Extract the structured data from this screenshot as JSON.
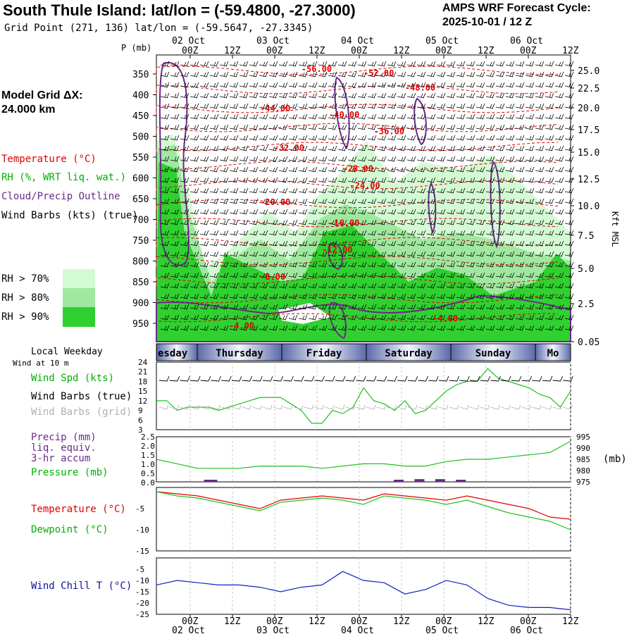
{
  "header": {
    "title": "South Thule Island:  lat/lon = (-59.4800, -27.3000)",
    "subtitle": "Grid Point (271, 136) lat/lon = (-59.5647, -27.3345)",
    "cycle_line1": "AMPS WRF Forecast Cycle:",
    "cycle_line2": "2025-10-01 / 12  Z"
  },
  "model_grid": {
    "line1": "Model Grid ΔX:",
    "line2": " 24.000 km"
  },
  "legend": {
    "temperature": "Temperature (°C)",
    "rh": "RH (%, WRT liq. wat.)",
    "cloud": "Cloud/Precip Outline",
    "wind": "Wind Barbs (kts) (true)",
    "rh70": "RH > 70%",
    "rh80": "RH > 80%",
    "rh90": "RH > 90%"
  },
  "time_axis": {
    "hours": [
      "00Z",
      "12Z",
      "00Z",
      "12Z",
      "00Z",
      "12Z",
      "00Z",
      "12Z",
      "00Z",
      "12Z"
    ],
    "dates": [
      "02 Oct",
      "03 Oct",
      "04 Oct",
      "05 Oct",
      "06 Oct"
    ]
  },
  "weekday_bar": {
    "label": "Local Weekday",
    "days": [
      "esday",
      "Thursday",
      "Friday",
      "Saturday",
      "Sunday",
      "Mo"
    ]
  },
  "colors": {
    "rh70": "#d4fad4",
    "rh80": "#a0e8a0",
    "rh90": "#30d030",
    "temp": "#e00000",
    "cloud": "#6a2a8a",
    "green_line": "#20c020",
    "red_line": "#e00000",
    "blue_line": "#1020c0",
    "day_bar": "#5a6aa8"
  },
  "chart_data": [
    {
      "type": "heatmap",
      "name": "time-height cross section",
      "y_left_label": "P (mb)",
      "y_left_ticks": [
        350,
        400,
        450,
        500,
        550,
        600,
        650,
        700,
        750,
        800,
        850,
        900,
        950
      ],
      "y_right_label": "Kft MSL",
      "y_right_ticks": [
        "25.0",
        "22.5",
        "20.0",
        "17.5",
        "15.0",
        "12.5",
        "10.0",
        "7.5",
        "5.0",
        "2.5",
        "0.05"
      ],
      "temperature_labels": [
        {
          "text": "-56.00",
          "t": 42,
          "p": 345
        },
        {
          "text": "-52.00",
          "t": 60,
          "p": 355
        },
        {
          "text": "-48.00",
          "t": 72,
          "p": 390
        },
        {
          "text": "-44.00",
          "t": 30,
          "p": 440
        },
        {
          "text": "-40.00",
          "t": 50,
          "p": 455
        },
        {
          "text": "-36.00",
          "t": 63,
          "p": 495
        },
        {
          "text": "-32.00",
          "t": 34,
          "p": 535
        },
        {
          "text": "-28.00",
          "t": 54,
          "p": 585
        },
        {
          "text": "-24.00",
          "t": 56,
          "p": 625
        },
        {
          "text": "-20.00",
          "t": 30,
          "p": 665
        },
        {
          "text": "-16.00",
          "t": 50,
          "p": 715
        },
        {
          "text": "-12.00",
          "t": 48,
          "p": 780
        },
        {
          "text": "-8.00",
          "t": 30,
          "p": 845
        },
        {
          "text": "-4.00",
          "t": 21,
          "p": 963
        },
        {
          "text": "-4.00",
          "t": 80,
          "p": 945
        }
      ]
    },
    {
      "type": "line",
      "name": "Wind Spd (kts)",
      "labels": [
        "Wind at 10 m",
        "Wind Spd (kts)",
        "Wind Barbs (true)",
        "Wind Barbs (grid)"
      ],
      "yticks": [
        3,
        6,
        9,
        12,
        15,
        18,
        21,
        24
      ],
      "ylim": [
        3,
        24
      ],
      "x": [
        0,
        3,
        6,
        9,
        12,
        15,
        18,
        21,
        24,
        27,
        30,
        33,
        36,
        39,
        42,
        45,
        48,
        51,
        54,
        57,
        60,
        63,
        66,
        69,
        72,
        75,
        78,
        81,
        84,
        87,
        90,
        93,
        96,
        99,
        102,
        105,
        108,
        111,
        114,
        117,
        120
      ],
      "values": [
        12,
        12,
        9,
        10,
        10,
        10,
        9,
        10,
        11,
        12,
        13,
        13,
        13,
        11,
        9,
        5,
        5,
        9,
        8,
        10,
        16,
        12,
        11,
        9,
        12,
        8,
        9,
        12,
        15,
        17,
        18,
        18,
        22,
        19,
        18,
        17,
        16,
        14,
        13,
        10,
        15
      ]
    },
    {
      "type": "line",
      "name": "Pressure (mb)",
      "labels": [
        "Precip (mm)",
        "liq. equiv.",
        "3-hr accum",
        "Pressure (mb)"
      ],
      "left_ticks": [
        "2.5",
        "2.0",
        "1.5",
        "1.0",
        "0.5",
        "0.0"
      ],
      "right_ticks": [
        995,
        990,
        985,
        980,
        975
      ],
      "right_label": "(mb)",
      "ylim": [
        975,
        995
      ],
      "x": [
        0,
        6,
        12,
        18,
        24,
        30,
        36,
        42,
        48,
        54,
        60,
        66,
        72,
        78,
        84,
        90,
        96,
        102,
        108,
        114,
        120
      ],
      "values": [
        985,
        983,
        981,
        981,
        981,
        982,
        982,
        982,
        981,
        982,
        983,
        983,
        982,
        982,
        984,
        985,
        985,
        986,
        987,
        988,
        993
      ],
      "precip_bars": [
        {
          "t": 15,
          "v": 0.05
        },
        {
          "t": 16,
          "v": 0.05
        },
        {
          "t": 70,
          "v": 0.1
        },
        {
          "t": 76,
          "v": 0.15
        },
        {
          "t": 82,
          "v": 0.15
        },
        {
          "t": 88,
          "v": 0.05
        }
      ]
    },
    {
      "type": "line",
      "name": "Temperature / Dewpoint",
      "labels": [
        "Temperature (°C)",
        "Dewpoint (°C)"
      ],
      "yticks": [
        -15,
        -10,
        -5
      ],
      "ylim": [
        -15,
        0
      ],
      "x": [
        0,
        6,
        12,
        18,
        24,
        30,
        36,
        42,
        48,
        54,
        60,
        66,
        72,
        78,
        84,
        90,
        96,
        102,
        108,
        114,
        120
      ],
      "series": [
        {
          "name": "Temperature (°C)",
          "values": [
            -1,
            -1.5,
            -2,
            -3,
            -4,
            -5,
            -3,
            -2.5,
            -2,
            -2.5,
            -3,
            -1.5,
            -2,
            -2.5,
            -3,
            -2,
            -3,
            -4,
            -5,
            -7,
            -7.5
          ]
        },
        {
          "name": "Dewpoint (°C)",
          "values": [
            -1,
            -2,
            -2.5,
            -3.5,
            -4.5,
            -5.5,
            -3.5,
            -3,
            -2.5,
            -3,
            -4,
            -2,
            -2.5,
            -3,
            -4,
            -3,
            -4.5,
            -6,
            -7,
            -8,
            -10
          ]
        }
      ]
    },
    {
      "type": "line",
      "name": "Wind Chill T (°C)",
      "labels": [
        "Wind Chill T (°C)"
      ],
      "yticks": [
        -25,
        -20,
        -15,
        -10,
        -5
      ],
      "ylim": [
        -25,
        0
      ],
      "x": [
        0,
        6,
        12,
        18,
        24,
        30,
        36,
        42,
        48,
        54,
        60,
        66,
        72,
        78,
        84,
        90,
        96,
        102,
        108,
        114,
        120
      ],
      "values": [
        -12,
        -10,
        -11,
        -12,
        -12,
        -13,
        -15,
        -13,
        -12,
        -6,
        -10,
        -11,
        -16,
        -14,
        -10,
        -12,
        -18,
        -21,
        -22,
        -22,
        -23
      ]
    }
  ]
}
